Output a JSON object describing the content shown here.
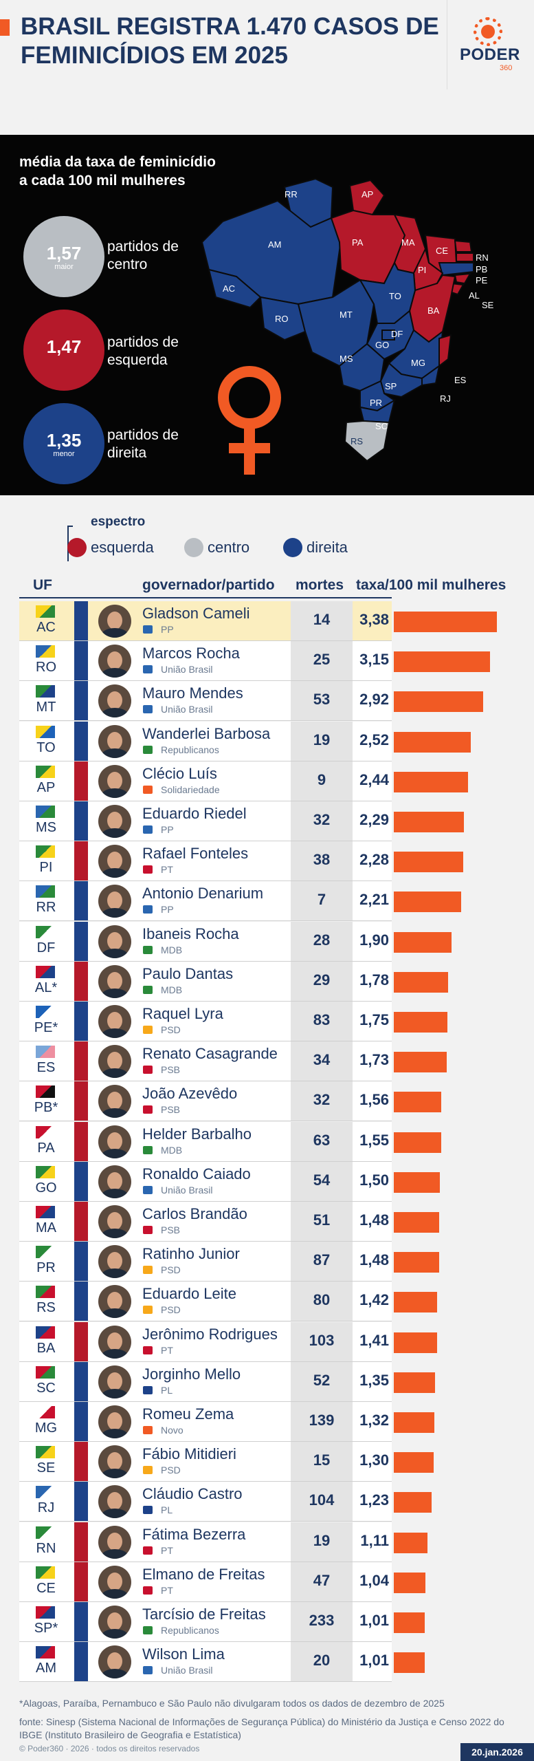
{
  "header": {
    "title": "BRASIL REGISTRA 1.470 CASOS DE FEMINICÍDIOS EM 2025",
    "logo_text": "PODER",
    "logo_sub": "360"
  },
  "map_section": {
    "title": "média da taxa de feminicídio a cada 100 mil mulheres",
    "centro": {
      "value": "1,57",
      "sub": "maior",
      "label": "partidos de centro"
    },
    "esquerda": {
      "value": "1,47",
      "sub": "",
      "label": "partidos de esquerda"
    },
    "direita": {
      "value": "1,35",
      "sub": "menor",
      "label": "partidos de direita"
    },
    "state_labels": [
      "RR",
      "AP",
      "AM",
      "PA",
      "MA",
      "CE",
      "RN",
      "PB",
      "PE",
      "AL",
      "SE",
      "AC",
      "RO",
      "TO",
      "PI",
      "BA",
      "MT",
      "DF",
      "GO",
      "MS",
      "MG",
      "ES",
      "SP",
      "RJ",
      "PR",
      "SC",
      "RS"
    ]
  },
  "legend": {
    "title": "espectro",
    "esquerda": "esquerda",
    "centro": "centro",
    "direita": "direita"
  },
  "columns": {
    "uf": "UF",
    "governador": "governador/partido",
    "mortes": "mortes",
    "taxa": "taxa/100 mil mulheres"
  },
  "colors": {
    "esquerda": "#b5192a",
    "centro": "#b9bec3",
    "direita": "#1d4289",
    "bar": "#f15a24",
    "highlight": "#fbeebf"
  },
  "chart_data": {
    "type": "bar",
    "title": "BRASIL REGISTRA 1.470 CASOS DE FEMINICÍDIOS EM 2025",
    "xlabel": "taxa/100 mil mulheres",
    "rows": [
      {
        "uf": "AC",
        "governor": "Gladson Cameli",
        "party": "PP",
        "spectrum": "direita",
        "mortes": 14,
        "taxa": "3,38",
        "rate": 3.38,
        "highlight": true
      },
      {
        "uf": "RO",
        "governor": "Marcos Rocha",
        "party": "União Brasil",
        "spectrum": "direita",
        "mortes": 25,
        "taxa": "3,15",
        "rate": 3.15
      },
      {
        "uf": "MT",
        "governor": "Mauro Mendes",
        "party": "União Brasil",
        "spectrum": "direita",
        "mortes": 53,
        "taxa": "2,92",
        "rate": 2.92
      },
      {
        "uf": "TO",
        "governor": "Wanderlei Barbosa",
        "party": "Republicanos",
        "spectrum": "direita",
        "mortes": 19,
        "taxa": "2,52",
        "rate": 2.52
      },
      {
        "uf": "AP",
        "governor": "Clécio Luís",
        "party": "Solidariedade",
        "spectrum": "esquerda",
        "mortes": 9,
        "taxa": "2,44",
        "rate": 2.44
      },
      {
        "uf": "MS",
        "governor": "Eduardo Riedel",
        "party": "PP",
        "spectrum": "direita",
        "mortes": 32,
        "taxa": "2,29",
        "rate": 2.29
      },
      {
        "uf": "PI",
        "governor": "Rafael Fonteles",
        "party": "PT",
        "spectrum": "esquerda",
        "mortes": 38,
        "taxa": "2,28",
        "rate": 2.28
      },
      {
        "uf": "RR",
        "governor": "Antonio Denarium",
        "party": "PP",
        "spectrum": "direita",
        "mortes": 7,
        "taxa": "2,21",
        "rate": 2.21
      },
      {
        "uf": "DF",
        "governor": "Ibaneis Rocha",
        "party": "MDB",
        "spectrum": "direita",
        "mortes": 28,
        "taxa": "1,90",
        "rate": 1.9
      },
      {
        "uf": "AL*",
        "governor": "Paulo Dantas",
        "party": "MDB",
        "spectrum": "esquerda",
        "mortes": 29,
        "taxa": "1,78",
        "rate": 1.78
      },
      {
        "uf": "PE*",
        "governor": "Raquel Lyra",
        "party": "PSD",
        "spectrum": "direita",
        "mortes": 83,
        "taxa": "1,75",
        "rate": 1.75
      },
      {
        "uf": "ES",
        "governor": "Renato Casagrande",
        "party": "PSB",
        "spectrum": "esquerda",
        "mortes": 34,
        "taxa": "1,73",
        "rate": 1.73
      },
      {
        "uf": "PB*",
        "governor": "João Azevêdo",
        "party": "PSB",
        "spectrum": "esquerda",
        "mortes": 32,
        "taxa": "1,56",
        "rate": 1.56
      },
      {
        "uf": "PA",
        "governor": "Helder Barbalho",
        "party": "MDB",
        "spectrum": "esquerda",
        "mortes": 63,
        "taxa": "1,55",
        "rate": 1.55
      },
      {
        "uf": "GO",
        "governor": "Ronaldo Caiado",
        "party": "União Brasil",
        "spectrum": "direita",
        "mortes": 54,
        "taxa": "1,50",
        "rate": 1.5
      },
      {
        "uf": "MA",
        "governor": "Carlos Brandão",
        "party": "PSB",
        "spectrum": "esquerda",
        "mortes": 51,
        "taxa": "1,48",
        "rate": 1.48
      },
      {
        "uf": "PR",
        "governor": "Ratinho Junior",
        "party": "PSD",
        "spectrum": "direita",
        "mortes": 87,
        "taxa": "1,48",
        "rate": 1.48
      },
      {
        "uf": "RS",
        "governor": "Eduardo Leite",
        "party": "PSD",
        "spectrum": "direita",
        "mortes": 80,
        "taxa": "1,42",
        "rate": 1.42
      },
      {
        "uf": "BA",
        "governor": "Jerônimo Rodrigues",
        "party": "PT",
        "spectrum": "esquerda",
        "mortes": 103,
        "taxa": "1,41",
        "rate": 1.41
      },
      {
        "uf": "SC",
        "governor": "Jorginho Mello",
        "party": "PL",
        "spectrum": "direita",
        "mortes": 52,
        "taxa": "1,35",
        "rate": 1.35
      },
      {
        "uf": "MG",
        "governor": "Romeu Zema",
        "party": "Novo",
        "spectrum": "direita",
        "mortes": 139,
        "taxa": "1,32",
        "rate": 1.32
      },
      {
        "uf": "SE",
        "governor": "Fábio Mitidieri",
        "party": "PSD",
        "spectrum": "esquerda",
        "mortes": 15,
        "taxa": "1,30",
        "rate": 1.3
      },
      {
        "uf": "RJ",
        "governor": "Cláudio Castro",
        "party": "PL",
        "spectrum": "direita",
        "mortes": 104,
        "taxa": "1,23",
        "rate": 1.23
      },
      {
        "uf": "RN",
        "governor": "Fátima Bezerra",
        "party": "PT",
        "spectrum": "esquerda",
        "mortes": 19,
        "taxa": "1,11",
        "rate": 1.11
      },
      {
        "uf": "CE",
        "governor": "Elmano de Freitas",
        "party": "PT",
        "spectrum": "esquerda",
        "mortes": 47,
        "taxa": "1,04",
        "rate": 1.04
      },
      {
        "uf": "SP*",
        "governor": "Tarcísio de Freitas",
        "party": "Republicanos",
        "spectrum": "direita",
        "mortes": 233,
        "taxa": "1,01",
        "rate": 1.01
      },
      {
        "uf": "AM",
        "governor": "Wilson Lima",
        "party": "União Brasil",
        "spectrum": "direita",
        "mortes": 20,
        "taxa": "1,01",
        "rate": 1.01
      }
    ]
  },
  "footer": {
    "note": "*Alagoas, Paraíba, Pernambuco e São Paulo não divulgaram todos os dados de dezembro de 2025",
    "source": "fonte: Sinesp (Sistema Nacional de Informações de Segurança Pública) do Ministério da Justiça e Censo 2022 do IBGE (Instituto Brasileiro de Geografia e Estatística)",
    "copyright": "© Poder360 · 2026 · todos os direitos reservados",
    "date": "20.jan.2026"
  }
}
